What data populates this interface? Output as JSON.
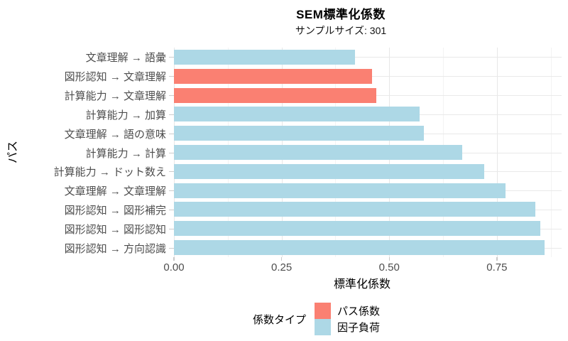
{
  "header": {
    "title": "SEM標準化係数",
    "subtitle": "サンプルサイズ: 301"
  },
  "colors": {
    "path_coefficient": "#FA8072",
    "factor_loading": "#ADD8E6",
    "grid_major": "#E7E7E7",
    "grid_minor": "#F3F3F3",
    "axis_text": "#4D4D4D",
    "title_text": "#000000",
    "background": "#FFFFFF"
  },
  "chart_data": {
    "type": "bar",
    "orientation": "horizontal",
    "title": "SEM標準化係数",
    "subtitle": "サンプルサイズ: 301",
    "xlabel": "標準化係数",
    "ylabel": "パス",
    "legend_title": "係数タイプ",
    "legend_position": "bottom",
    "xlim": [
      0,
      0.9
    ],
    "xticks": [
      0.0,
      0.25,
      0.5,
      0.75
    ],
    "xtick_labels": [
      "0.00",
      "0.25",
      "0.50",
      "0.75"
    ],
    "grid": "major-and-minor-vertical, major-horizontal",
    "categories": [
      "文章理解 → 語彙",
      "図形認知 → 文章理解",
      "計算能力 → 文章理解",
      "計算能力 → 加算",
      "文章理解 → 語の意味",
      "計算能力 → 計算",
      "計算能力 → ドット数え",
      "文章理解 → 文章理解",
      "図形認知 → 図形補完",
      "図形認知 → 図形認知",
      "図形認知 → 方向認識"
    ],
    "values": [
      0.42,
      0.46,
      0.47,
      0.57,
      0.58,
      0.67,
      0.72,
      0.77,
      0.84,
      0.85,
      0.86
    ],
    "groups": [
      "因子負荷",
      "パス係数",
      "パス係数",
      "因子負荷",
      "因子負荷",
      "因子負荷",
      "因子負荷",
      "因子負荷",
      "因子負荷",
      "因子負荷",
      "因子負荷"
    ],
    "legend": [
      {
        "label": "パス係数",
        "color": "#FA8072"
      },
      {
        "label": "因子負荷",
        "color": "#ADD8E6"
      }
    ]
  }
}
